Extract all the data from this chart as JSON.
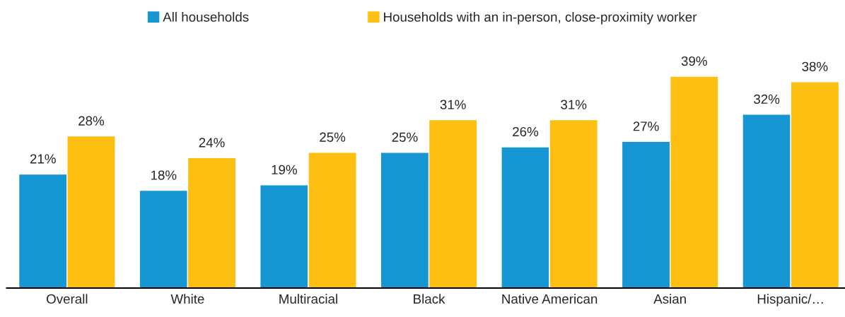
{
  "chart_data": {
    "type": "bar",
    "categories": [
      "Overall",
      "White",
      "Multiracial",
      "Black",
      "Native American",
      "Asian",
      "Hispanic/…"
    ],
    "series": [
      {
        "name": "All households",
        "color": "#1696d2",
        "values": [
          21,
          18,
          19,
          25,
          26,
          27,
          32
        ],
        "value_labels": [
          "21%",
          "18%",
          "19%",
          "25%",
          "26%",
          "27%",
          "32%"
        ]
      },
      {
        "name": "Households with an in-person, close-proximity worker",
        "color": "#fdbf11",
        "values": [
          28,
          24,
          25,
          31,
          31,
          39,
          38
        ],
        "value_labels": [
          "28%",
          "24%",
          "25%",
          "31%",
          "31%",
          "39%",
          "38%"
        ]
      }
    ],
    "legend": "top",
    "grid": false
  }
}
